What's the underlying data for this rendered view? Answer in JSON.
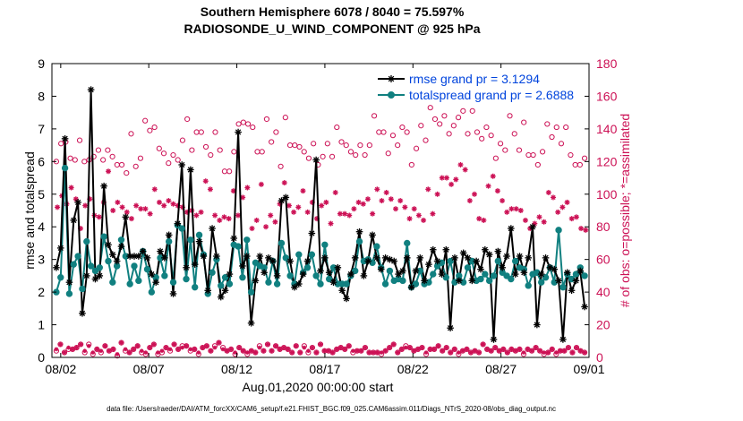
{
  "title_line1": "Southern Hemisphere 6078 / 8040 = 75.597%",
  "title_line2": "RADIOSONDE_U_WIND_COMPONENT @ 925 hPa",
  "footer": "data file: /Users/raeder/DAI/ATM_forcXX/CAM6_setup/f.e21.FHIST_BGC.f09_025.CAM6assim.011/Diags_NTrS_2020-08/obs_diag_output.nc",
  "colors": {
    "rmse": "#000000",
    "spread": "#118080",
    "obs": "#cc1155"
  },
  "chart_data": {
    "type": "line",
    "title": "Southern Hemisphere 6078 / 8040 = 75.597%  RADIOSONDE_U_WIND_COMPONENT @ 925 hPa",
    "xlabel": "Aug.01,2020 00:00:00 start",
    "ylabel": "rmse and totalspread",
    "y2label": "# of obs: o=possible; *=assimilated",
    "xlim": [
      1.5,
      32.0
    ],
    "ylim": [
      0,
      9
    ],
    "y2lim": [
      0,
      180
    ],
    "xticks": [
      {
        "x": 2,
        "label": "08/02"
      },
      {
        "x": 7,
        "label": "08/07"
      },
      {
        "x": 12,
        "label": "08/12"
      },
      {
        "x": 17,
        "label": "08/17"
      },
      {
        "x": 22,
        "label": "08/22"
      },
      {
        "x": 27,
        "label": "08/27"
      },
      {
        "x": 32,
        "label": "09/01"
      }
    ],
    "yticks": [
      0,
      1,
      2,
      3,
      4,
      5,
      6,
      7,
      8,
      9
    ],
    "y2ticks": [
      0,
      20,
      40,
      60,
      80,
      100,
      120,
      140,
      160,
      180
    ],
    "legend": [
      "rmse grand pr = 3.1294",
      "totalspread grand pr = 2.6888"
    ],
    "series": [
      {
        "name": "rmse",
        "values": [
          2.75,
          3.35,
          6.7,
          2.3,
          4.2,
          4.75,
          1.35,
          2.5,
          8.2,
          2.4,
          2.5,
          5.25,
          3.45,
          3.15,
          2.95,
          3.4,
          4.3,
          3.1,
          3.1,
          3.1,
          3.25,
          3.05,
          2.55,
          2.3,
          3.25,
          3.05,
          3.75,
          1.95,
          4.1,
          5.9,
          2.75,
          5.75,
          2.85,
          3.55,
          3.1,
          2.05,
          3.95,
          3.1,
          1.85,
          2.05,
          2.55,
          3.65,
          6.9,
          2.8,
          3.1,
          1.05,
          2.35,
          3.1,
          2.6,
          3.05,
          2.95,
          2.5,
          4.8,
          4.9,
          2.95,
          2.15,
          2.25,
          2.55,
          2.95,
          3.8,
          6.05,
          2.65,
          3.05,
          2.6,
          2.3,
          2.75,
          2.05,
          1.8,
          2.55,
          3.05,
          3.85,
          2.5,
          2.95,
          3.75,
          3.05,
          2.7,
          3.05,
          3.0,
          2.95,
          2.55,
          2.65,
          3.05,
          2.15,
          2.65,
          3.05,
          2.35,
          2.85,
          3.3,
          2.95,
          2.55,
          3.3,
          0.9,
          3.05,
          2.35,
          3.2,
          3.05,
          2.35,
          2.95,
          2.7,
          3.3,
          3.15,
          0.55,
          3.25,
          2.75,
          3.1,
          3.95,
          2.55,
          3.1,
          2.6,
          3.05,
          4.0,
          1.0,
          2.55,
          3.05,
          2.75,
          2.7,
          2.35,
          0.55,
          2.6,
          2.05,
          2.35,
          2.65,
          1.55
        ]
      },
      {
        "name": "totalspread",
        "values": [
          2.0,
          2.45,
          5.8,
          1.95,
          2.85,
          3.1,
          2.1,
          3.55,
          2.8,
          2.65,
          2.75,
          3.7,
          2.95,
          2.3,
          2.8,
          3.6,
          3.1,
          2.25,
          2.8,
          2.35,
          3.25,
          2.7,
          2.0,
          2.45,
          3.05,
          2.5,
          3.55,
          2.3,
          4.05,
          3.95,
          2.4,
          3.6,
          2.15,
          3.75,
          3.15,
          1.95,
          2.6,
          3.0,
          2.2,
          2.45,
          2.25,
          3.45,
          3.4,
          2.45,
          3.6,
          2.0,
          2.9,
          2.8,
          2.75,
          2.3,
          2.95,
          2.25,
          3.5,
          3.05,
          2.5,
          2.25,
          3.15,
          2.6,
          2.75,
          3.15,
          2.5,
          2.25,
          3.45,
          2.4,
          2.75,
          2.25,
          2.25,
          2.25,
          2.5,
          2.65,
          3.55,
          2.95,
          3.0,
          2.9,
          3.4,
          2.75,
          2.25,
          2.65,
          2.35,
          2.4,
          2.35,
          3.5,
          2.15,
          2.25,
          2.65,
          2.25,
          2.3,
          2.55,
          2.8,
          2.9,
          2.45,
          2.95,
          2.3,
          2.5,
          2.3,
          2.75,
          2.95,
          2.35,
          2.4,
          2.55,
          2.35,
          2.5,
          2.95,
          2.6,
          2.5,
          2.4,
          2.95,
          2.75,
          2.7,
          2.2,
          2.55,
          2.6,
          2.3,
          2.45,
          2.75,
          2.3,
          3.9,
          2.15,
          2.55,
          2.4,
          2.55,
          2.75,
          2.5
        ]
      },
      {
        "name": "obs_possible",
        "values": [
          120,
          131,
          132,
          122,
          121,
          133,
          120,
          121,
          123,
          127,
          121,
          127,
          123,
          118,
          118,
          113,
          137,
          117,
          122,
          145,
          139,
          141,
          128,
          125,
          119,
          124,
          121,
          133,
          146,
          127,
          138,
          138,
          129,
          124,
          138,
          127,
          114,
          114,
          126,
          143,
          144,
          143,
          141,
          126,
          126,
          146,
          132,
          138,
          117,
          147,
          130,
          130,
          129,
          126,
          122,
          131,
          118,
          123,
          131,
          123,
          141,
          132,
          130,
          126,
          124,
          130,
          124,
          130,
          148,
          138,
          138,
          125,
          136,
          130,
          141,
          138,
          118,
          128,
          142,
          133,
          153,
          146,
          143,
          148,
          137,
          142,
          147,
          151,
          137,
          151,
          138,
          134,
          141,
          136,
          122,
          131,
          127,
          148,
          137,
          127,
          144,
          124,
          124,
          118,
          126,
          143,
          135,
          141,
          131,
          141,
          124,
          118,
          118,
          122
        ]
      },
      {
        "name": "obs_assimilated",
        "values": [
          92,
          99,
          94,
          104,
          97,
          79,
          93,
          97,
          87,
          86,
          95,
          114,
          90,
          95,
          92,
          89,
          85,
          93,
          91,
          91,
          88,
          103,
          95,
          93,
          96,
          94,
          93,
          92,
          89,
          90,
          87,
          89,
          108,
          103,
          87,
          84,
          86,
          85,
          102,
          87,
          98,
          104,
          79,
          84,
          106,
          80,
          87,
          83,
          94,
          107,
          93,
          89,
          92,
          102,
          89,
          95,
          85,
          93,
          95,
          82,
          101,
          88,
          88,
          87,
          91,
          95,
          94,
          97,
          88,
          103,
          96,
          101,
          97,
          91,
          96,
          92,
          85,
          91,
          87,
          84,
          103,
          88,
          100,
          110,
          110,
          106,
          109,
          118,
          115,
          96,
          100,
          85,
          84,
          105,
          111,
          102,
          96,
          89,
          91,
          91,
          90,
          84,
          79,
          82,
          86,
          83,
          101,
          98,
          89,
          92,
          95,
          85,
          86,
          79,
          78
        ]
      },
      {
        "name": "obs_low_possible",
        "values": [
          4,
          8,
          3,
          5,
          5,
          6,
          8,
          3,
          8,
          2,
          5,
          3,
          7,
          4,
          5,
          1,
          9,
          4,
          3,
          5,
          7,
          3,
          2,
          6,
          8,
          2,
          3,
          6,
          4,
          8,
          5,
          7,
          7,
          4,
          5,
          2,
          6,
          7,
          4,
          7,
          9,
          6,
          4,
          5,
          2,
          6,
          4,
          2,
          4,
          3,
          7,
          4,
          8,
          4,
          7,
          5,
          6,
          5,
          3,
          7,
          3,
          7,
          3,
          6,
          3,
          8,
          4,
          4,
          3,
          5,
          6,
          5,
          7,
          3,
          4,
          4,
          6,
          3,
          3,
          3,
          2,
          4,
          6,
          8,
          3,
          5,
          7,
          6,
          4,
          5,
          6,
          2,
          5,
          5,
          7,
          4,
          6,
          3,
          5,
          2,
          4,
          5,
          3,
          4,
          3,
          8,
          5,
          4,
          6,
          4,
          5,
          3,
          5,
          4,
          5,
          2,
          5,
          4,
          6,
          4,
          2,
          3,
          5,
          2,
          4,
          4,
          6,
          3,
          6,
          4,
          3
        ]
      },
      {
        "name": "obs_low_assimilated",
        "values": [
          5,
          8,
          3,
          6,
          5,
          6,
          8,
          4,
          7,
          3,
          5,
          4,
          7,
          4,
          5,
          2,
          9,
          5,
          3,
          5,
          7,
          4,
          3,
          6,
          8,
          3,
          4,
          6,
          5,
          8,
          5,
          6,
          7,
          5,
          5,
          3,
          6,
          7,
          4,
          6,
          9,
          5,
          4,
          5,
          3,
          6,
          4,
          3,
          4,
          3,
          6,
          4,
          8,
          4,
          7,
          5,
          6,
          5,
          3,
          7,
          3,
          6,
          4,
          6,
          3,
          8,
          4,
          4,
          3,
          5,
          6,
          5,
          7,
          4,
          4,
          4,
          6,
          3,
          3,
          3,
          3,
          4,
          6,
          8,
          3,
          5,
          6,
          6,
          4,
          5,
          6,
          3,
          5,
          5,
          7,
          4,
          6,
          3,
          5,
          3,
          4,
          5,
          3,
          4,
          3,
          8,
          5,
          4,
          6,
          4,
          5,
          3,
          5,
          4,
          5,
          3,
          5,
          4,
          6,
          4,
          3,
          3,
          5,
          3,
          4,
          4,
          6,
          3,
          6,
          4,
          3
        ]
      }
    ]
  }
}
